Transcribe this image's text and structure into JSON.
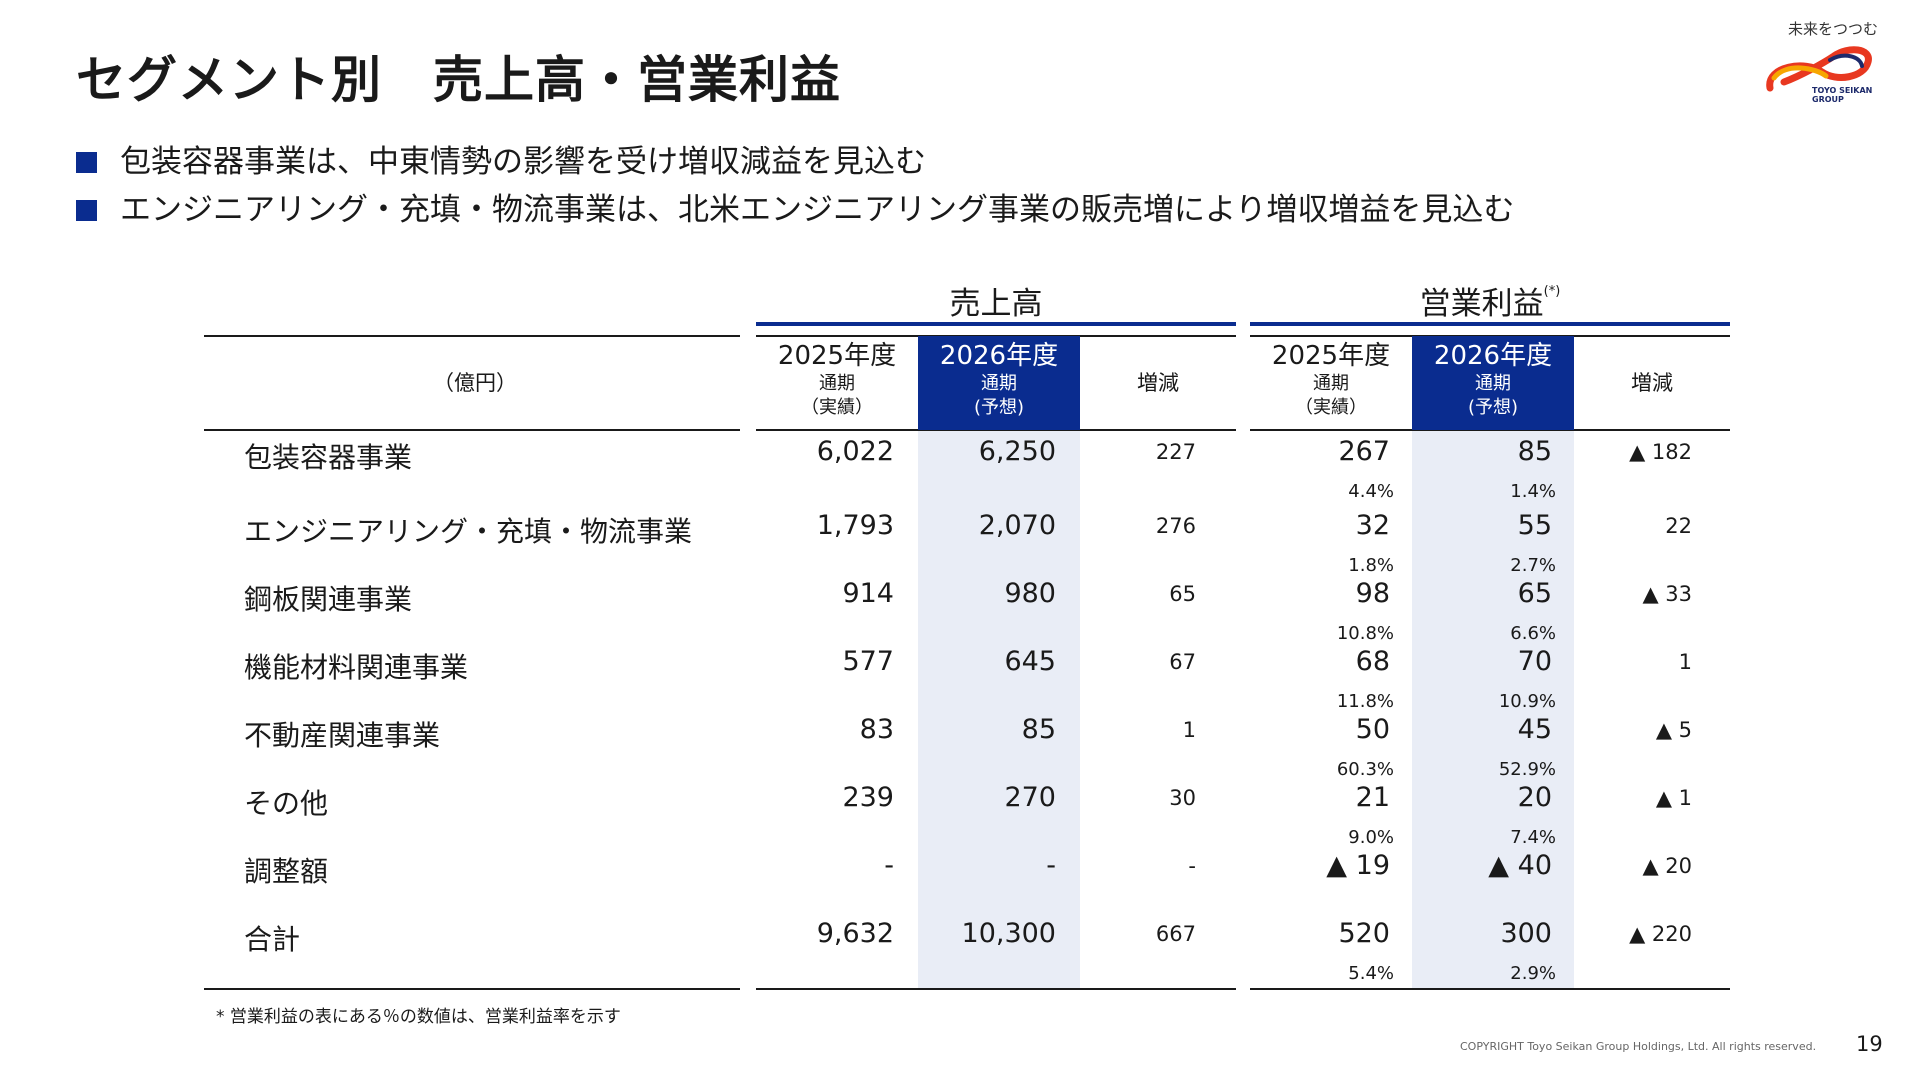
{
  "title": "セグメント別　売上高・営業利益",
  "logo": {
    "tagline": "未来をつつむ",
    "name_line1": "TOYO SEIKAN",
    "name_line2": "GROUP"
  },
  "bullets": [
    "包装容器事業は、中東情勢の影響を受け増収減益を見込む",
    "エンジニアリング・充填・物流事業は、北米エンジニアリング事業の販売増により増収増益を見込む"
  ],
  "table": {
    "unit": "（億円）",
    "groups": {
      "sales": "売上高",
      "profit": "営業利益",
      "profit_note_mark": "(*)"
    },
    "headers": {
      "fy2025": "2025年度",
      "fy2025_sub1": "通期",
      "fy2025_sub2": "（実績）",
      "fy2026": "2026年度",
      "fy2026_sub1": "通期",
      "fy2026_sub2": "(予想)",
      "change": "増減"
    },
    "rows": [
      {
        "label": "包装容器事業",
        "s25": "6,022",
        "s26": "6,250",
        "sd": "227",
        "p25": "267",
        "p26": "85",
        "pd": "▲ 182",
        "m25": "4.4%",
        "m26": "1.4%"
      },
      {
        "label": "エンジニアリング・充填・物流事業",
        "s25": "1,793",
        "s26": "2,070",
        "sd": "276",
        "p25": "32",
        "p26": "55",
        "pd": "22",
        "m25": "1.8%",
        "m26": "2.7%"
      },
      {
        "label": "鋼板関連事業",
        "s25": "914",
        "s26": "980",
        "sd": "65",
        "p25": "98",
        "p26": "65",
        "pd": "▲ 33",
        "m25": "10.8%",
        "m26": "6.6%"
      },
      {
        "label": "機能材料関連事業",
        "s25": "577",
        "s26": "645",
        "sd": "67",
        "p25": "68",
        "p26": "70",
        "pd": "1",
        "m25": "11.8%",
        "m26": "10.9%"
      },
      {
        "label": "不動産関連事業",
        "s25": "83",
        "s26": "85",
        "sd": "1",
        "p25": "50",
        "p26": "45",
        "pd": "▲ 5",
        "m25": "60.3%",
        "m26": "52.9%"
      },
      {
        "label": "その他",
        "s25": "239",
        "s26": "270",
        "sd": "30",
        "p25": "21",
        "p26": "20",
        "pd": "▲ 1",
        "m25": "9.0%",
        "m26": "7.4%"
      },
      {
        "label": "調整額",
        "s25": "-",
        "s26": "-",
        "sd": "-",
        "p25": "▲ 19",
        "p26": "▲ 40",
        "pd": "▲ 20",
        "m25": "",
        "m26": ""
      },
      {
        "label": "合計",
        "s25": "9,632",
        "s26": "10,300",
        "sd": "667",
        "p25": "520",
        "p26": "300",
        "pd": "▲ 220",
        "m25": "5.4%",
        "m26": "2.9%"
      }
    ]
  },
  "footnote": "* 営業利益の表にある％の数値は、営業利益率を示す",
  "copyright": "COPYRIGHT Toyo Seikan Group Holdings, Ltd. All rights reserved.",
  "page_number": "19",
  "colors": {
    "accent": "#0a2c8f",
    "highlight_column": "#e9edf6",
    "text": "#1a1a1a"
  }
}
